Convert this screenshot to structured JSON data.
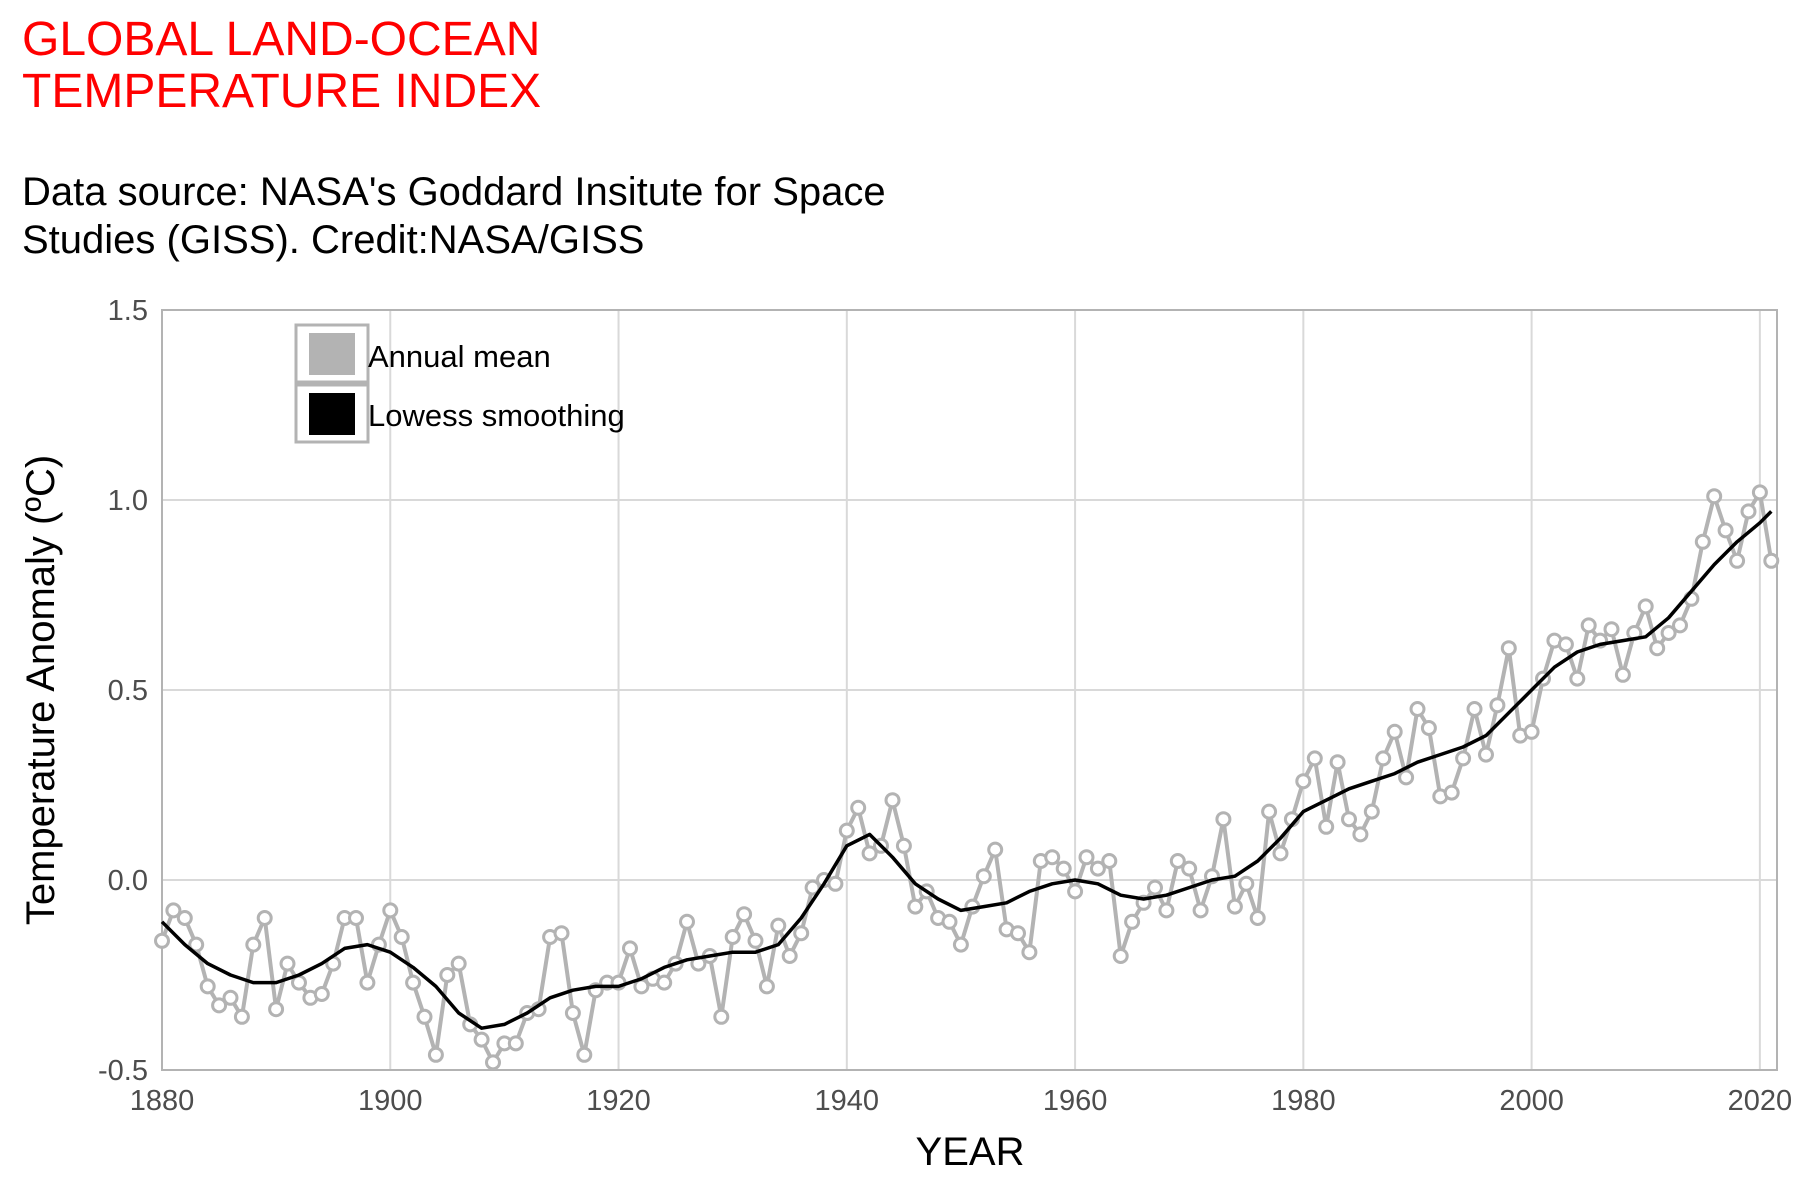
{
  "header": {
    "title_line1": "GLOBAL LAND-OCEAN",
    "title_line2": "TEMPERATURE INDEX",
    "subtitle_line1": "Data source: NASA's Goddard Insitute for Space",
    "subtitle_line2": "Studies (GISS). Credit:NASA/GISS"
  },
  "colors": {
    "title": "#ff0000",
    "annual": "#b3b3b3",
    "smooth": "#000000",
    "grid": "#d9d9d9",
    "panel_border": "#b3b3b3"
  },
  "chart_data": {
    "type": "line",
    "title": "GLOBAL LAND-OCEAN TEMPERATURE INDEX",
    "subtitle": "Data source: NASA's Goddard Insitute for Space Studies (GISS). Credit:NASA/GISS",
    "xlabel": "YEAR",
    "ylabel": "Temperature Anomaly (ºC)",
    "xlim": [
      1880,
      2021
    ],
    "ylim": [
      -0.5,
      1.5
    ],
    "xticks": [
      1880,
      1900,
      1920,
      1940,
      1960,
      1980,
      2000,
      2020
    ],
    "yticks": [
      {
        "value": -0.5,
        "label": "-0.5"
      },
      {
        "value": 0,
        "label": "0.0"
      },
      {
        "value": 0.5,
        "label": "0.5"
      },
      {
        "value": 1.0,
        "label": "1.0"
      },
      {
        "value": 1.5,
        "label": "1.5"
      }
    ],
    "grid": true,
    "legend_position": "top-left",
    "series": [
      {
        "name": "Annual mean",
        "style": "line+points",
        "color": "#b3b3b3",
        "x": [
          1880,
          1881,
          1882,
          1883,
          1884,
          1885,
          1886,
          1887,
          1888,
          1889,
          1890,
          1891,
          1892,
          1893,
          1894,
          1895,
          1896,
          1897,
          1898,
          1899,
          1900,
          1901,
          1902,
          1903,
          1904,
          1905,
          1906,
          1907,
          1908,
          1909,
          1910,
          1911,
          1912,
          1913,
          1914,
          1915,
          1916,
          1917,
          1918,
          1919,
          1920,
          1921,
          1922,
          1923,
          1924,
          1925,
          1926,
          1927,
          1928,
          1929,
          1930,
          1931,
          1932,
          1933,
          1934,
          1935,
          1936,
          1937,
          1938,
          1939,
          1940,
          1941,
          1942,
          1943,
          1944,
          1945,
          1946,
          1947,
          1948,
          1949,
          1950,
          1951,
          1952,
          1953,
          1954,
          1955,
          1956,
          1957,
          1958,
          1959,
          1960,
          1961,
          1962,
          1963,
          1964,
          1965,
          1966,
          1967,
          1968,
          1969,
          1970,
          1971,
          1972,
          1973,
          1974,
          1975,
          1976,
          1977,
          1978,
          1979,
          1980,
          1981,
          1982,
          1983,
          1984,
          1985,
          1986,
          1987,
          1988,
          1989,
          1990,
          1991,
          1992,
          1993,
          1994,
          1995,
          1996,
          1997,
          1998,
          1999,
          2000,
          2001,
          2002,
          2003,
          2004,
          2005,
          2006,
          2007,
          2008,
          2009,
          2010,
          2011,
          2012,
          2013,
          2014,
          2015,
          2016,
          2017,
          2018,
          2019,
          2020,
          2021
        ],
        "y": [
          -0.16,
          -0.08,
          -0.1,
          -0.17,
          -0.28,
          -0.33,
          -0.31,
          -0.36,
          -0.17,
          -0.1,
          -0.34,
          -0.22,
          -0.27,
          -0.31,
          -0.3,
          -0.22,
          -0.1,
          -0.1,
          -0.27,
          -0.17,
          -0.08,
          -0.15,
          -0.27,
          -0.36,
          -0.46,
          -0.25,
          -0.22,
          -0.38,
          -0.42,
          -0.48,
          -0.43,
          -0.43,
          -0.35,
          -0.34,
          -0.15,
          -0.14,
          -0.35,
          -0.46,
          -0.29,
          -0.27,
          -0.27,
          -0.18,
          -0.28,
          -0.26,
          -0.27,
          -0.22,
          -0.11,
          -0.22,
          -0.2,
          -0.36,
          -0.15,
          -0.09,
          -0.16,
          -0.28,
          -0.12,
          -0.2,
          -0.14,
          -0.02,
          0.0,
          -0.01,
          0.13,
          0.19,
          0.07,
          0.09,
          0.21,
          0.09,
          -0.07,
          -0.03,
          -0.1,
          -0.11,
          -0.17,
          -0.07,
          0.01,
          0.08,
          -0.13,
          -0.14,
          -0.19,
          0.05,
          0.06,
          0.03,
          -0.03,
          0.06,
          0.03,
          0.05,
          -0.2,
          -0.11,
          -0.06,
          -0.02,
          -0.08,
          0.05,
          0.03,
          -0.08,
          0.01,
          0.16,
          -0.07,
          -0.01,
          -0.1,
          0.18,
          0.07,
          0.16,
          0.26,
          0.32,
          0.14,
          0.31,
          0.16,
          0.12,
          0.18,
          0.32,
          0.39,
          0.27,
          0.45,
          0.4,
          0.22,
          0.23,
          0.32,
          0.45,
          0.33,
          0.46,
          0.61,
          0.38,
          0.39,
          0.53,
          0.63,
          0.62,
          0.53,
          0.67,
          0.63,
          0.66,
          0.54,
          0.65,
          0.72,
          0.61,
          0.65,
          0.67,
          0.74,
          0.89,
          1.01,
          0.92,
          0.84,
          0.97,
          1.02,
          0.84
        ]
      },
      {
        "name": "Lowess smoothing",
        "style": "line",
        "color": "#000000",
        "x": [
          1880,
          1882,
          1884,
          1886,
          1888,
          1890,
          1892,
          1894,
          1896,
          1898,
          1900,
          1902,
          1904,
          1906,
          1908,
          1910,
          1912,
          1914,
          1916,
          1918,
          1920,
          1922,
          1924,
          1926,
          1928,
          1930,
          1932,
          1934,
          1936,
          1938,
          1940,
          1942,
          1944,
          1946,
          1948,
          1950,
          1952,
          1954,
          1956,
          1958,
          1960,
          1962,
          1964,
          1966,
          1968,
          1970,
          1972,
          1974,
          1976,
          1978,
          1980,
          1982,
          1984,
          1986,
          1988,
          1990,
          1992,
          1994,
          1996,
          1998,
          2000,
          2002,
          2004,
          2006,
          2008,
          2010,
          2012,
          2014,
          2016,
          2018,
          2020,
          2021
        ],
        "y": [
          -0.11,
          -0.17,
          -0.22,
          -0.25,
          -0.27,
          -0.27,
          -0.25,
          -0.22,
          -0.18,
          -0.17,
          -0.19,
          -0.23,
          -0.28,
          -0.35,
          -0.39,
          -0.38,
          -0.35,
          -0.31,
          -0.29,
          -0.28,
          -0.28,
          -0.26,
          -0.23,
          -0.21,
          -0.2,
          -0.19,
          -0.19,
          -0.17,
          -0.1,
          -0.01,
          0.09,
          0.12,
          0.06,
          -0.01,
          -0.05,
          -0.08,
          -0.07,
          -0.06,
          -0.03,
          -0.01,
          0.0,
          -0.01,
          -0.04,
          -0.05,
          -0.04,
          -0.02,
          0.0,
          0.01,
          0.05,
          0.11,
          0.18,
          0.21,
          0.24,
          0.26,
          0.28,
          0.31,
          0.33,
          0.35,
          0.38,
          0.44,
          0.5,
          0.56,
          0.6,
          0.62,
          0.63,
          0.64,
          0.69,
          0.76,
          0.83,
          0.89,
          0.94,
          0.97
        ]
      }
    ]
  }
}
